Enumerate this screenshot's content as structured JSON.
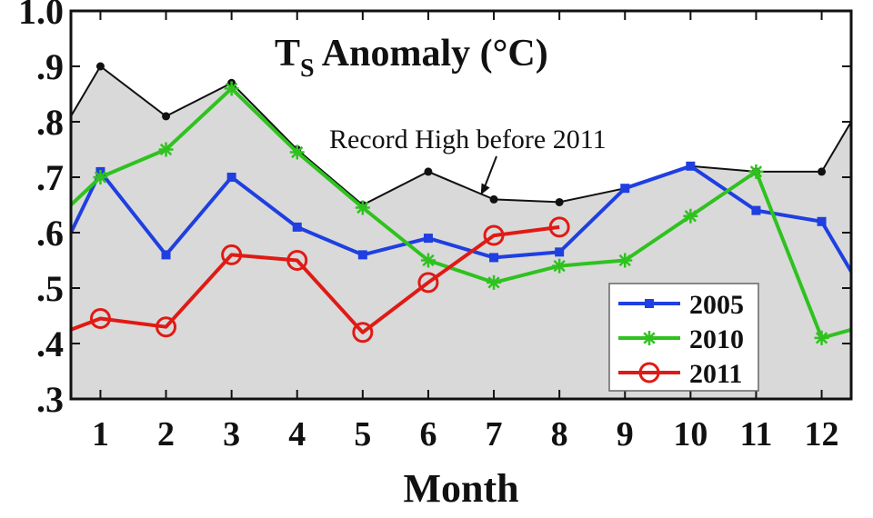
{
  "chart_data": {
    "type": "line",
    "title_main": "T",
    "title_sub": "S",
    "title_rest": " Anomaly (°C)",
    "xlabel": "Month",
    "ylabel": "",
    "x": [
      1,
      2,
      3,
      4,
      5,
      6,
      7,
      8,
      9,
      10,
      11,
      12
    ],
    "xlim": [
      0.55,
      12.45
    ],
    "ylim": [
      0.3,
      1.0
    ],
    "y_ticks": [
      {
        "value": 0.3,
        "label": ".3"
      },
      {
        "value": 0.4,
        "label": ".4"
      },
      {
        "value": 0.5,
        "label": ".5"
      },
      {
        "value": 0.6,
        "label": ".6"
      },
      {
        "value": 0.7,
        "label": ".7"
      },
      {
        "value": 0.8,
        "label": ".8"
      },
      {
        "value": 0.9,
        "label": ".9"
      },
      {
        "value": 1.0,
        "label": "1.0"
      }
    ],
    "x_ticks": [
      "1",
      "2",
      "3",
      "4",
      "5",
      "6",
      "7",
      "8",
      "9",
      "10",
      "11",
      "12"
    ],
    "record": {
      "x": [
        0.55,
        1,
        2,
        3,
        4,
        5,
        6,
        7,
        8,
        9,
        10,
        11,
        12,
        12.45
      ],
      "y": [
        0.81,
        0.9,
        0.81,
        0.87,
        0.75,
        0.65,
        0.71,
        0.66,
        0.655,
        0.68,
        0.72,
        0.71,
        0.71,
        0.8
      ],
      "color": "#111111",
      "fill": "#d9d9d9"
    },
    "annotation": {
      "text": "Record High before 2011",
      "points_to": {
        "x": 6.8,
        "y": 0.668
      }
    },
    "series": [
      {
        "name": "2005",
        "color": "#1f3fe0",
        "marker": "square",
        "x": [
          0.55,
          1,
          2,
          3,
          4,
          5,
          6,
          7,
          8,
          9,
          10,
          11,
          12,
          12.45
        ],
        "y": [
          0.6,
          0.71,
          0.56,
          0.7,
          0.61,
          0.56,
          0.59,
          0.555,
          0.565,
          0.68,
          0.72,
          0.64,
          0.62,
          0.53
        ]
      },
      {
        "name": "2010",
        "color": "#2fc21f",
        "marker": "star",
        "x": [
          0.55,
          1,
          2,
          3,
          4,
          5,
          6,
          7,
          8,
          9,
          10,
          11,
          12,
          12.45
        ],
        "y": [
          0.65,
          0.7,
          0.75,
          0.86,
          0.745,
          0.645,
          0.55,
          0.51,
          0.54,
          0.55,
          0.63,
          0.71,
          0.41,
          0.425
        ]
      },
      {
        "name": "2011",
        "color": "#e01a14",
        "marker": "circle",
        "x": [
          0.55,
          1,
          2,
          3,
          4,
          5,
          6,
          7,
          8
        ],
        "y": [
          0.425,
          0.445,
          0.43,
          0.56,
          0.55,
          0.42,
          0.51,
          0.595,
          0.61
        ]
      }
    ],
    "legend_position": "bottom-right",
    "grid": false
  }
}
